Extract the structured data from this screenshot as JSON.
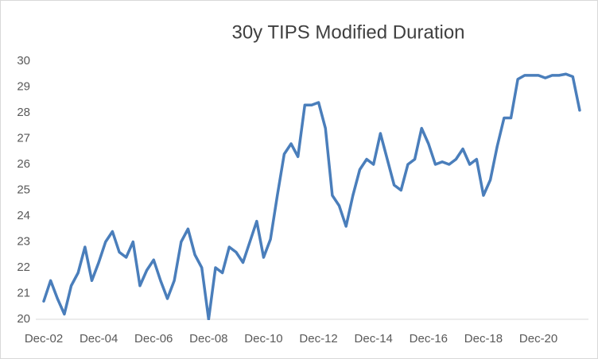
{
  "chart_data": {
    "type": "line",
    "title": "30y TIPS Modified Duration",
    "categories": [
      "Dec-02",
      null,
      null,
      null,
      null,
      null,
      null,
      null,
      "Dec-04",
      null,
      null,
      null,
      null,
      null,
      null,
      null,
      "Dec-06",
      null,
      null,
      null,
      null,
      null,
      null,
      null,
      "Dec-08",
      null,
      null,
      null,
      null,
      null,
      null,
      null,
      "Dec-10",
      null,
      null,
      null,
      null,
      null,
      null,
      null,
      "Dec-12",
      null,
      null,
      null,
      null,
      null,
      null,
      null,
      "Dec-14",
      null,
      null,
      null,
      null,
      null,
      null,
      null,
      "Dec-16",
      null,
      null,
      null,
      null,
      null,
      null,
      null,
      "Dec-18",
      null,
      null,
      null,
      null,
      null,
      null,
      null,
      "Dec-20",
      null,
      null,
      null,
      null,
      null,
      null
    ],
    "series": [
      {
        "name": "30y TIPS Modified Duration",
        "color": "#4a7ebb",
        "values": [
          20.7,
          21.5,
          20.8,
          20.2,
          21.3,
          21.8,
          22.8,
          21.5,
          22.2,
          23.0,
          23.4,
          22.6,
          22.4,
          23.0,
          21.3,
          21.9,
          22.3,
          21.5,
          20.8,
          21.5,
          23.0,
          23.5,
          22.5,
          22.0,
          20.0,
          22.0,
          21.8,
          22.8,
          22.6,
          22.2,
          23.0,
          23.8,
          22.4,
          23.1,
          24.8,
          26.4,
          26.8,
          26.3,
          28.3,
          28.3,
          28.4,
          27.4,
          24.8,
          24.4,
          23.6,
          24.8,
          25.8,
          26.2,
          26.0,
          27.2,
          26.2,
          25.2,
          25.0,
          26.0,
          26.2,
          27.4,
          26.8,
          26.0,
          26.1,
          26.0,
          26.2,
          26.6,
          26.0,
          26.2,
          24.8,
          25.4,
          26.7,
          27.8,
          27.8,
          29.3,
          29.45,
          29.45,
          29.45,
          29.35,
          29.45,
          29.45,
          29.5,
          29.4,
          28.1
        ]
      }
    ],
    "ylim": [
      20,
      30
    ],
    "yticks": [
      20,
      21,
      22,
      23,
      24,
      25,
      26,
      27,
      28,
      29,
      30
    ],
    "grid": false
  }
}
